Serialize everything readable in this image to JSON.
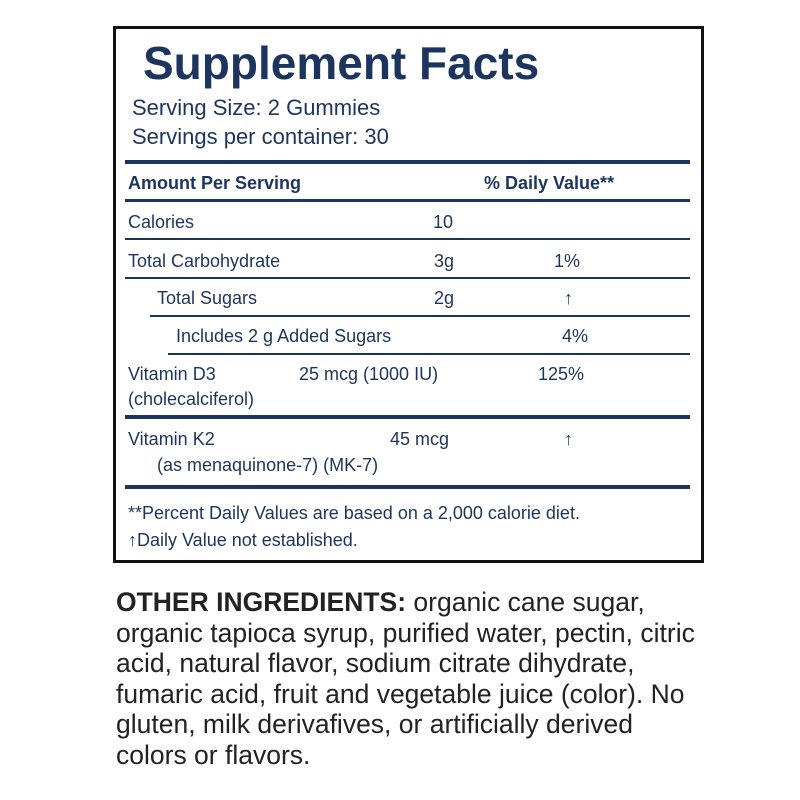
{
  "title": "Supplement Facts",
  "serving_size": "Serving Size: 2 Gummies",
  "servings_per_container": "Servings per container: 30",
  "header": {
    "amount": "Amount Per Serving",
    "dv": "% Daily Value**"
  },
  "rows": [
    {
      "name": "Calories",
      "amount": "10",
      "dv": ""
    },
    {
      "name": "Total Carbohydrate",
      "amount": "3g",
      "dv": "1%"
    },
    {
      "name": "Total Sugars",
      "amount": "2g",
      "dv": "↑"
    },
    {
      "name": "Includes 2 g Added Sugars",
      "amount": "",
      "dv": "4%"
    },
    {
      "name": "Vitamin D3",
      "sub": "(cholecalciferol)",
      "amount": "25 mcg (1000 IU)",
      "dv": "125%"
    },
    {
      "name": "Vitamin K2",
      "sub": "(as menaquinone-7) (MK-7)",
      "amount": "45 mcg",
      "dv": "↑"
    }
  ],
  "footnotes": [
    "**Percent Daily Values are based on a 2,000 calorie diet.",
    "↑Daily Value not established."
  ],
  "other_ingredients": {
    "label": "OTHER INGREDIENTS:",
    "text": " organic cane sugar, organic tapioca syrup, purified water, pectin, citric acid, natural flavor, sodium citrate dihydrate, fumaric acid, fruit and vegetable juice (color). No gluten, milk derivafives, or artificially derived colors or flavors."
  },
  "colors": {
    "navy": "#1c355e",
    "border": "#111111"
  }
}
